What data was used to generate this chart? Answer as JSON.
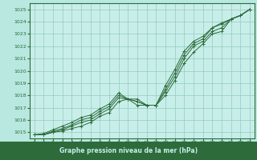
{
  "title": "Graphe pression niveau de la mer (hPa)",
  "background_color": "#b8e8e0",
  "plot_bg_color": "#c8eeea",
  "grid_color": "#90ccbb",
  "line_color": "#2d6b3a",
  "xlabel_bg": "#2d6b3a",
  "xlabel_fg": "#c8eeea",
  "xlim": [
    -0.5,
    23.5
  ],
  "ylim": [
    1014.5,
    1025.5
  ],
  "yticks": [
    1015,
    1016,
    1017,
    1018,
    1019,
    1020,
    1021,
    1022,
    1023,
    1024,
    1025
  ],
  "xticks": [
    0,
    1,
    2,
    3,
    4,
    5,
    6,
    7,
    8,
    9,
    10,
    11,
    12,
    13,
    14,
    15,
    16,
    17,
    18,
    19,
    20,
    21,
    22,
    23
  ],
  "series": [
    [
      1014.8,
      1014.8,
      1015.0,
      1015.1,
      1015.3,
      1015.5,
      1015.8,
      1016.3,
      1016.6,
      1017.5,
      1017.7,
      1017.2,
      1017.2,
      1017.2,
      1018.0,
      1019.2,
      1020.6,
      1021.5,
      1022.2,
      1023.0,
      1023.2,
      1024.2,
      1024.5,
      1025.0
    ],
    [
      1014.8,
      1014.8,
      1015.0,
      1015.2,
      1015.5,
      1015.8,
      1016.0,
      1016.5,
      1016.9,
      1017.8,
      1017.7,
      1017.5,
      1017.2,
      1017.2,
      1018.3,
      1019.5,
      1021.0,
      1022.0,
      1022.4,
      1023.2,
      1023.5,
      1024.2,
      1024.5,
      1025.0
    ],
    [
      1014.8,
      1014.8,
      1015.1,
      1015.3,
      1015.6,
      1016.0,
      1016.2,
      1016.7,
      1017.1,
      1018.0,
      1017.7,
      1017.5,
      1017.2,
      1017.2,
      1018.5,
      1019.8,
      1021.3,
      1022.2,
      1022.6,
      1023.5,
      1023.8,
      1024.2,
      1024.5,
      1025.0
    ],
    [
      1014.8,
      1014.9,
      1015.2,
      1015.5,
      1015.8,
      1016.2,
      1016.4,
      1016.9,
      1017.3,
      1018.2,
      1017.7,
      1017.7,
      1017.2,
      1017.2,
      1018.8,
      1020.1,
      1021.6,
      1022.4,
      1022.8,
      1023.5,
      1023.9,
      1024.2,
      1024.5,
      1025.0
    ]
  ]
}
